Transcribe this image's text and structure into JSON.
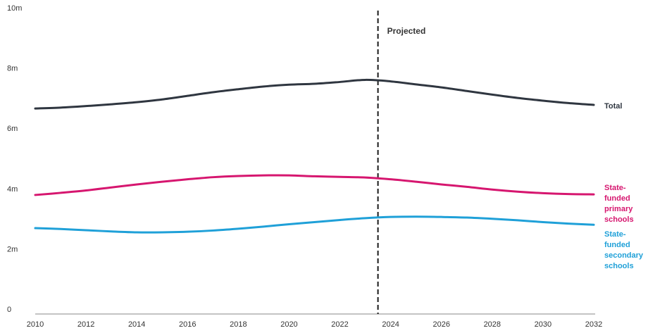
{
  "chart_data": {
    "type": "line",
    "title": "",
    "xlabel": "",
    "ylabel": "",
    "x": [
      2010,
      2011,
      2012,
      2013,
      2014,
      2015,
      2016,
      2017,
      2018,
      2019,
      2020,
      2021,
      2022,
      2023,
      2024,
      2025,
      2026,
      2027,
      2028,
      2029,
      2030,
      2031,
      2032
    ],
    "xlim": [
      2010,
      2032
    ],
    "ylim": [
      0,
      10
    ],
    "x_ticks": [
      "2010",
      "2012",
      "2014",
      "2016",
      "2018",
      "2020",
      "2022",
      "2024",
      "2026",
      "2028",
      "2030",
      "2032"
    ],
    "y_ticks": [
      {
        "value": 0,
        "label": "0"
      },
      {
        "value": 2,
        "label": "2m"
      },
      {
        "value": 4,
        "label": "4m"
      },
      {
        "value": 6,
        "label": "6m"
      },
      {
        "value": 8,
        "label": "8m"
      },
      {
        "value": 10,
        "label": "10m"
      }
    ],
    "grid": false,
    "projection_marker": {
      "x": 2023.5,
      "label": "Projected"
    },
    "series": [
      {
        "name": "Total",
        "label_lines": [
          "Total"
        ],
        "color": "#2f3640",
        "values": [
          6.82,
          6.85,
          6.9,
          6.96,
          7.03,
          7.12,
          7.24,
          7.36,
          7.46,
          7.55,
          7.61,
          7.64,
          7.7,
          7.77,
          7.72,
          7.62,
          7.52,
          7.4,
          7.28,
          7.17,
          7.08,
          7.0,
          6.94
        ]
      },
      {
        "name": "State-funded primary schools",
        "label_lines": [
          "State-",
          "funded",
          "primary",
          "schools"
        ],
        "color": "#d6166f",
        "values": [
          3.95,
          4.02,
          4.1,
          4.2,
          4.3,
          4.39,
          4.47,
          4.54,
          4.58,
          4.6,
          4.6,
          4.57,
          4.55,
          4.53,
          4.47,
          4.39,
          4.3,
          4.22,
          4.13,
          4.06,
          4.01,
          3.98,
          3.97
        ]
      },
      {
        "name": "State-funded secondary schools",
        "label_lines": [
          "State-",
          "funded",
          "secondary",
          "schools"
        ],
        "color": "#1fa0d8",
        "values": [
          2.85,
          2.82,
          2.78,
          2.74,
          2.71,
          2.71,
          2.73,
          2.77,
          2.83,
          2.9,
          2.98,
          3.05,
          3.12,
          3.18,
          3.22,
          3.23,
          3.22,
          3.2,
          3.16,
          3.11,
          3.05,
          3.0,
          2.96
        ]
      }
    ]
  }
}
